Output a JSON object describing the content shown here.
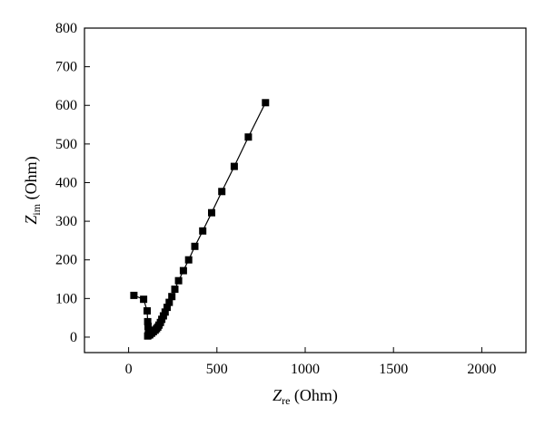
{
  "chart_data": {
    "type": "scatter",
    "xlabel": {
      "main": "Z",
      "sub": "re",
      "unit": " (Ohm)"
    },
    "ylabel": {
      "main": "Z",
      "sub": "im",
      "unit": " (Ohm)"
    },
    "xlim": [
      -250,
      2250
    ],
    "ylim": [
      -40,
      800
    ],
    "xticks": [
      0,
      500,
      1000,
      1500,
      2000
    ],
    "yticks": [
      0,
      100,
      200,
      300,
      400,
      500,
      600,
      700,
      800
    ],
    "grid": false,
    "legend": "none",
    "marker": "square",
    "connected": true,
    "color": "#000000",
    "series": [
      {
        "points": [
          [
            30,
            108
          ],
          [
            85,
            98
          ],
          [
            105,
            68
          ],
          [
            108,
            40
          ],
          [
            110,
            28
          ],
          [
            112,
            18
          ],
          [
            114,
            10
          ],
          [
            112,
            5
          ],
          [
            108,
            3
          ],
          [
            120,
            6
          ],
          [
            130,
            10
          ],
          [
            140,
            14
          ],
          [
            150,
            18
          ],
          [
            158,
            22
          ],
          [
            165,
            26
          ],
          [
            172,
            31
          ],
          [
            180,
            38
          ],
          [
            188,
            46
          ],
          [
            197,
            55
          ],
          [
            207,
            65
          ],
          [
            218,
            77
          ],
          [
            230,
            90
          ],
          [
            245,
            105
          ],
          [
            262,
            124
          ],
          [
            283,
            146
          ],
          [
            310,
            172
          ],
          [
            340,
            200
          ],
          [
            375,
            235
          ],
          [
            420,
            275
          ],
          [
            470,
            322
          ],
          [
            528,
            377
          ],
          [
            598,
            442
          ],
          [
            678,
            518
          ],
          [
            775,
            607
          ]
        ]
      }
    ]
  }
}
